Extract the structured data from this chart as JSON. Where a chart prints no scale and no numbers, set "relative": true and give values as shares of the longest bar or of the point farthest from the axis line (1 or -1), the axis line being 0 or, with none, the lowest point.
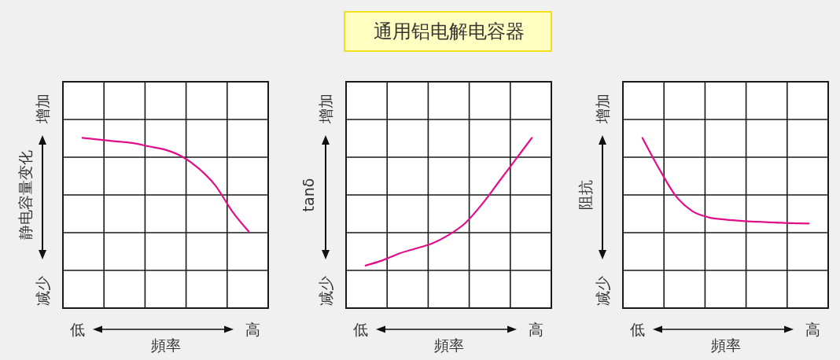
{
  "chart_data": [
    {
      "type": "line",
      "categories": [
        null,
        null,
        null,
        null,
        null,
        null,
        null,
        null,
        null,
        null,
        null
      ],
      "values": [
        1,
        0.99,
        0.98,
        0.97,
        0.95,
        0.93,
        0.89,
        0.82,
        0.72,
        0.57,
        0.45
      ],
      "color": "#e0108a",
      "relative": true,
      "grid": true,
      "xlabel": "頻率",
      "ylabel": "静电容量变化",
      "annotations": [
        "增加",
        "减少",
        "低",
        "高"
      ]
    },
    {
      "type": "line",
      "title": "通用铝电解电容器",
      "categories": [
        null,
        null,
        null,
        null,
        null,
        null,
        null,
        null,
        null,
        null,
        null
      ],
      "values": [
        0.25,
        0.28,
        0.32,
        0.35,
        0.38,
        0.43,
        0.5,
        0.61,
        0.74,
        0.87,
        1
      ],
      "color": "#e0108a",
      "relative": true,
      "grid": true,
      "xlabel": "頻率",
      "ylabel": "tanδ",
      "annotations": [
        "增加",
        "减少",
        "低",
        "高"
      ]
    },
    {
      "type": "line",
      "categories": [
        null,
        null,
        null,
        null,
        null,
        null,
        null,
        null,
        null,
        null,
        null
      ],
      "values": [
        1,
        0.82,
        0.66,
        0.57,
        0.533,
        0.52,
        0.512,
        0.507,
        0.503,
        0.499,
        0.497
      ],
      "color": "#e0108a",
      "relative": true,
      "grid": true,
      "xlabel": "頻率",
      "ylabel": "阻抗",
      "annotations": [
        "增加",
        "减少",
        "低",
        "高"
      ]
    }
  ]
}
